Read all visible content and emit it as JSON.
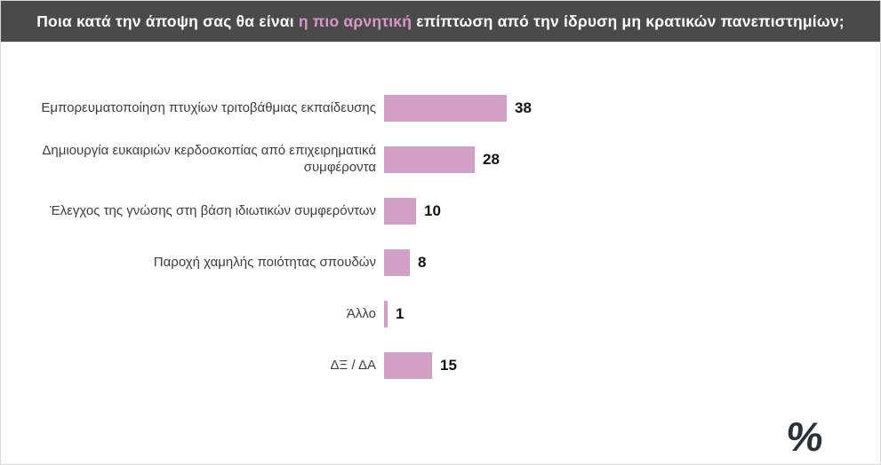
{
  "header": {
    "title_prefix": "Ποια κατά την άποψη σας θα είναι ",
    "title_highlight": "η πιο αρνητική",
    "title_suffix": " επίπτωση από την ίδρυση μη κρατικών πανεπιστημίων;",
    "bg_color": "#4a4a4a",
    "highlight_color": "#d997c9"
  },
  "chart_data": {
    "type": "bar",
    "orientation": "horizontal",
    "title": "Ποια κατά την άποψη σας θα είναι η πιο αρνητική επίπτωση από την ίδρυση μη κρατικών πανεπιστημίων;",
    "categories": [
      "Εμπορευματοποίηση πτυχίων τριτοβάθμιας εκπαίδευσης",
      "Δημιουργία ευκαιριών κερδοσκοπίας από επιχειρηματικά συμφέροντα",
      "Έλεγχος της γνώσης στη βάση ιδιωτικών συμφερόντων",
      "Παροχή χαμηλής ποιότητας σπουδών",
      "Άλλο",
      "ΔΞ / ΔΑ"
    ],
    "values": [
      38,
      28,
      10,
      8,
      1,
      15
    ],
    "unit": "%",
    "xlim": [
      0,
      40
    ],
    "bar_color": "#d29fc6",
    "value_label_color": "#111111",
    "grid": false,
    "legend": "none"
  },
  "footer": {
    "percent_symbol": "%"
  }
}
